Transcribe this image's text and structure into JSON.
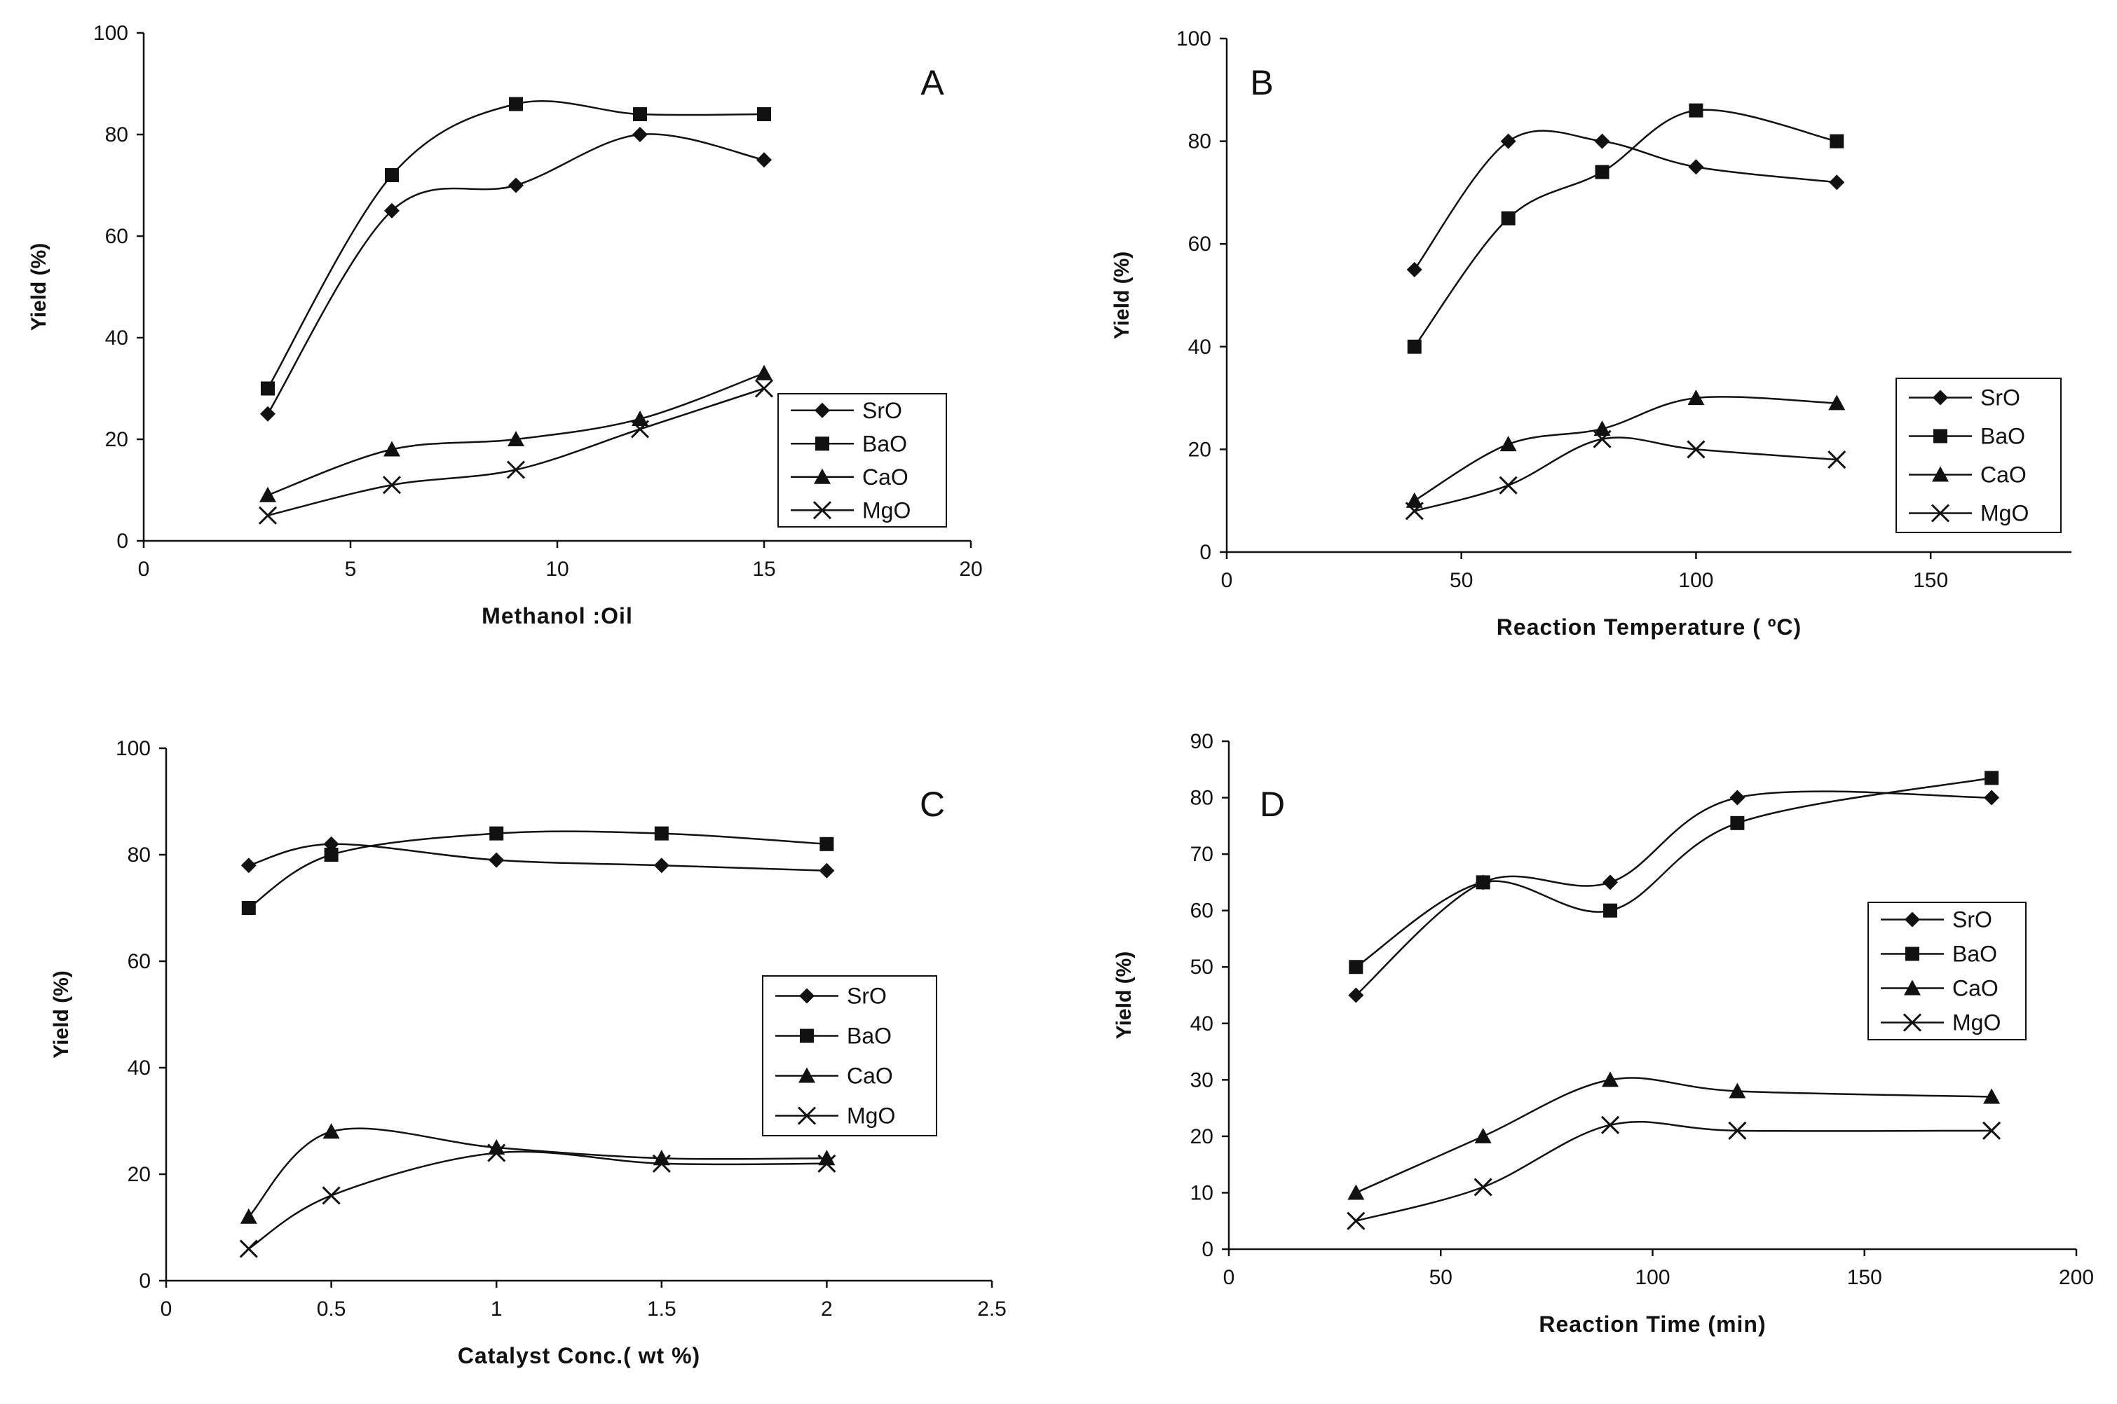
{
  "chart_data": [
    {
      "type": "line",
      "panel_label": "A",
      "title": "",
      "xlabel": "Methanol :Oil",
      "ylabel": "Yield (%)",
      "xlim": [
        0,
        20
      ],
      "ylim": [
        0,
        100
      ],
      "xticks": [
        0,
        5,
        10,
        15,
        20
      ],
      "yticks": [
        0,
        20,
        40,
        60,
        80,
        100
      ],
      "xtick_labels": [
        "0",
        "5",
        "10",
        "15",
        "20"
      ],
      "ytick_labels": [
        "0",
        "20",
        "40",
        "60",
        "80",
        "100"
      ],
      "grid": false,
      "legend": "bottom-right",
      "x": [
        3,
        6,
        9,
        12,
        15
      ],
      "series": [
        {
          "name": "SrO",
          "marker": "diamond",
          "values": [
            25,
            65,
            70,
            80,
            75
          ]
        },
        {
          "name": "BaO",
          "marker": "square",
          "values": [
            30,
            72,
            86,
            84,
            84
          ]
        },
        {
          "name": "CaO",
          "marker": "triangle",
          "values": [
            9,
            18,
            20,
            24,
            33
          ]
        },
        {
          "name": "MgO",
          "marker": "x",
          "values": [
            5,
            11,
            14,
            22,
            30
          ]
        }
      ]
    },
    {
      "type": "line",
      "panel_label": "B",
      "title": "",
      "xlabel": "Reaction Temperature ( ºC)",
      "ylabel": "Yield (%)",
      "xlim": [
        0,
        180
      ],
      "ylim": [
        0,
        100
      ],
      "xticks": [
        0,
        50,
        100,
        150
      ],
      "yticks": [
        0,
        20,
        40,
        60,
        80,
        100
      ],
      "xtick_labels": [
        "0",
        "50",
        "100",
        "150"
      ],
      "ytick_labels": [
        "0",
        "20",
        "40",
        "60",
        "80",
        "100"
      ],
      "grid": false,
      "legend": "bottom-right",
      "x": [
        40,
        60,
        80,
        100,
        130
      ],
      "series": [
        {
          "name": "SrO",
          "marker": "diamond",
          "values": [
            55,
            80,
            80,
            75,
            72
          ]
        },
        {
          "name": "BaO",
          "marker": "square",
          "values": [
            40,
            65,
            74,
            86,
            80
          ]
        },
        {
          "name": "CaO",
          "marker": "triangle",
          "values": [
            10,
            21,
            24,
            30,
            29
          ]
        },
        {
          "name": "MgO",
          "marker": "x",
          "values": [
            8,
            13,
            22,
            20,
            18
          ]
        }
      ]
    },
    {
      "type": "line",
      "panel_label": "C",
      "title": "",
      "xlabel": "Catalyst Conc.( wt %)",
      "ylabel": "Yield (%)",
      "xlim": [
        0,
        2.5
      ],
      "ylim": [
        0,
        100
      ],
      "xticks": [
        0,
        0.5,
        1,
        1.5,
        2,
        2.5
      ],
      "yticks": [
        0,
        20,
        40,
        60,
        80,
        100
      ],
      "xtick_labels": [
        "0",
        "0.5",
        "1",
        "1.5",
        "2",
        "2.5"
      ],
      "ytick_labels": [
        "0",
        "20",
        "40",
        "60",
        "80",
        "100"
      ],
      "grid": false,
      "legend": "right",
      "x": [
        0.25,
        0.5,
        1,
        1.5,
        2
      ],
      "series": [
        {
          "name": "SrO",
          "marker": "diamond",
          "values": [
            78,
            82,
            79,
            78,
            77
          ]
        },
        {
          "name": "BaO",
          "marker": "square",
          "values": [
            70,
            80,
            84,
            84,
            82
          ]
        },
        {
          "name": "CaO",
          "marker": "triangle",
          "values": [
            12,
            28,
            25,
            23,
            23
          ]
        },
        {
          "name": "MgO",
          "marker": "x",
          "values": [
            6,
            16,
            24,
            22,
            22
          ]
        }
      ]
    },
    {
      "type": "line",
      "panel_label": "D",
      "title": "",
      "xlabel": "Reaction Time (min)",
      "ylabel": "Yield (%)",
      "xlim": [
        0,
        200
      ],
      "ylim": [
        0,
        90
      ],
      "xticks": [
        0,
        50,
        100,
        150,
        200
      ],
      "yticks": [
        0,
        10,
        20,
        30,
        40,
        50,
        60,
        70,
        80,
        90
      ],
      "xtick_labels": [
        "0",
        "50",
        "100",
        "150",
        "200"
      ],
      "ytick_labels": [
        "0",
        "10",
        "20",
        "30",
        "40",
        "50",
        "60",
        "70",
        "80",
        "90"
      ],
      "grid": false,
      "legend": "right",
      "x": [
        30,
        60,
        90,
        120,
        180
      ],
      "series": [
        {
          "name": "SrO",
          "marker": "diamond",
          "values": [
            45,
            65,
            65,
            80,
            80
          ]
        },
        {
          "name": "BaO",
          "marker": "square",
          "values": [
            50,
            65,
            60,
            75.5,
            83.5
          ]
        },
        {
          "name": "CaO",
          "marker": "triangle",
          "values": [
            10,
            20,
            30,
            28,
            27
          ]
        },
        {
          "name": "MgO",
          "marker": "x",
          "values": [
            5,
            11,
            22,
            21,
            21
          ]
        }
      ]
    }
  ]
}
